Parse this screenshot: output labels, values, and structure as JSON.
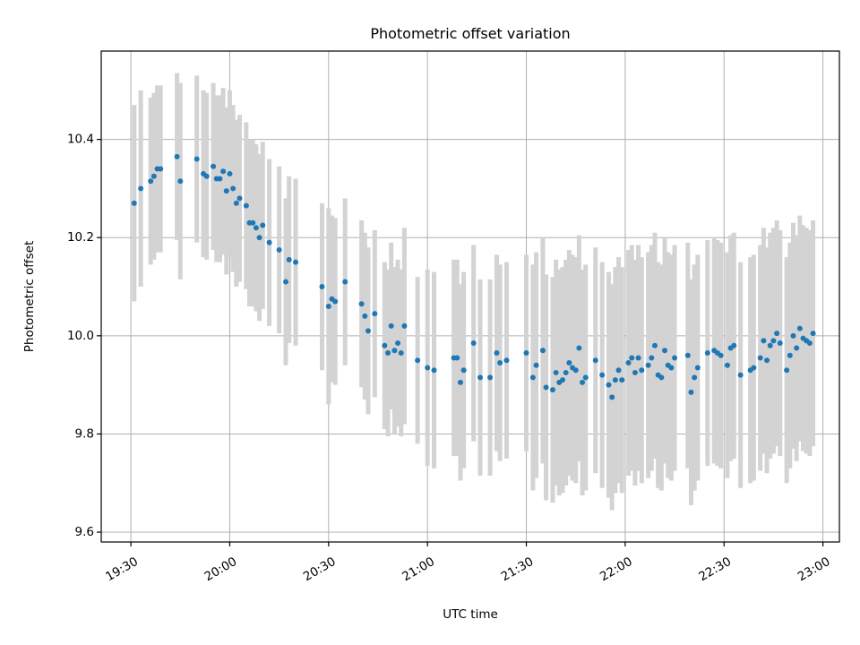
{
  "chart_data": {
    "type": "scatter",
    "title": "Photometric offset variation",
    "xlabel": "UTC time",
    "ylabel": "Photometric offset",
    "x_unit": "UTC time (HH:MM)",
    "xlim": [
      "19:21",
      "23:05"
    ],
    "ylim": [
      9.58,
      10.58
    ],
    "x_ticks": [
      "19:30",
      "20:00",
      "20:30",
      "21:00",
      "21:30",
      "22:00",
      "22:30",
      "23:00"
    ],
    "y_ticks": [
      "9.6",
      "9.8",
      "10.0",
      "10.2",
      "10.4"
    ],
    "grid": true,
    "x_tick_rotation": 30,
    "colors": {
      "point": "#1f77b4",
      "error_bar": "#d3d3d3"
    },
    "points": [
      {
        "t": "19:31",
        "y": 10.27,
        "err": 0.2
      },
      {
        "t": "19:33",
        "y": 10.3,
        "err": 0.2
      },
      {
        "t": "19:36",
        "y": 10.315,
        "err": 0.17
      },
      {
        "t": "19:37",
        "y": 10.325,
        "err": 0.17
      },
      {
        "t": "19:38",
        "y": 10.34,
        "err": 0.17
      },
      {
        "t": "19:39",
        "y": 10.34,
        "err": 0.17
      },
      {
        "t": "19:44",
        "y": 10.365,
        "err": 0.17
      },
      {
        "t": "19:45",
        "y": 10.315,
        "err": 0.2
      },
      {
        "t": "19:50",
        "y": 10.36,
        "err": 0.17
      },
      {
        "t": "19:52",
        "y": 10.33,
        "err": 0.17
      },
      {
        "t": "19:53",
        "y": 10.325,
        "err": 0.17
      },
      {
        "t": "19:55",
        "y": 10.345,
        "err": 0.17
      },
      {
        "t": "19:56",
        "y": 10.32,
        "err": 0.17
      },
      {
        "t": "19:57",
        "y": 10.32,
        "err": 0.17
      },
      {
        "t": "19:58",
        "y": 10.335,
        "err": 0.17
      },
      {
        "t": "19:59",
        "y": 10.295,
        "err": 0.17
      },
      {
        "t": "20:00",
        "y": 10.33,
        "err": 0.17
      },
      {
        "t": "20:01",
        "y": 10.3,
        "err": 0.17
      },
      {
        "t": "20:02",
        "y": 10.27,
        "err": 0.17
      },
      {
        "t": "20:03",
        "y": 10.28,
        "err": 0.17
      },
      {
        "t": "20:05",
        "y": 10.265,
        "err": 0.17
      },
      {
        "t": "20:06",
        "y": 10.23,
        "err": 0.17
      },
      {
        "t": "20:07",
        "y": 10.23,
        "err": 0.17
      },
      {
        "t": "20:08",
        "y": 10.22,
        "err": 0.17
      },
      {
        "t": "20:09",
        "y": 10.2,
        "err": 0.17
      },
      {
        "t": "20:10",
        "y": 10.225,
        "err": 0.17
      },
      {
        "t": "20:12",
        "y": 10.19,
        "err": 0.17
      },
      {
        "t": "20:15",
        "y": 10.175,
        "err": 0.17
      },
      {
        "t": "20:17",
        "y": 10.11,
        "err": 0.17
      },
      {
        "t": "20:18",
        "y": 10.155,
        "err": 0.17
      },
      {
        "t": "20:20",
        "y": 10.15,
        "err": 0.17
      },
      {
        "t": "20:28",
        "y": 10.1,
        "err": 0.17
      },
      {
        "t": "20:30",
        "y": 10.06,
        "err": 0.2
      },
      {
        "t": "20:31",
        "y": 10.075,
        "err": 0.17
      },
      {
        "t": "20:32",
        "y": 10.07,
        "err": 0.17
      },
      {
        "t": "20:35",
        "y": 10.11,
        "err": 0.17
      },
      {
        "t": "20:40",
        "y": 10.065,
        "err": 0.17
      },
      {
        "t": "20:41",
        "y": 10.04,
        "err": 0.17
      },
      {
        "t": "20:42",
        "y": 10.01,
        "err": 0.17
      },
      {
        "t": "20:44",
        "y": 10.045,
        "err": 0.17
      },
      {
        "t": "20:47",
        "y": 9.98,
        "err": 0.17
      },
      {
        "t": "20:48",
        "y": 9.965,
        "err": 0.17
      },
      {
        "t": "20:49",
        "y": 10.02,
        "err": 0.17
      },
      {
        "t": "20:50",
        "y": 9.97,
        "err": 0.17
      },
      {
        "t": "20:51",
        "y": 9.985,
        "err": 0.17
      },
      {
        "t": "20:52",
        "y": 9.965,
        "err": 0.17
      },
      {
        "t": "20:53",
        "y": 10.02,
        "err": 0.2
      },
      {
        "t": "20:57",
        "y": 9.95,
        "err": 0.17
      },
      {
        "t": "21:00",
        "y": 9.935,
        "err": 0.2
      },
      {
        "t": "21:02",
        "y": 9.93,
        "err": 0.2
      },
      {
        "t": "21:08",
        "y": 9.955,
        "err": 0.2
      },
      {
        "t": "21:09",
        "y": 9.955,
        "err": 0.2
      },
      {
        "t": "21:10",
        "y": 9.905,
        "err": 0.2
      },
      {
        "t": "21:11",
        "y": 9.93,
        "err": 0.2
      },
      {
        "t": "21:14",
        "y": 9.985,
        "err": 0.2
      },
      {
        "t": "21:16",
        "y": 9.915,
        "err": 0.2
      },
      {
        "t": "21:19",
        "y": 9.915,
        "err": 0.2
      },
      {
        "t": "21:21",
        "y": 9.965,
        "err": 0.2
      },
      {
        "t": "21:22",
        "y": 9.945,
        "err": 0.2
      },
      {
        "t": "21:24",
        "y": 9.95,
        "err": 0.2
      },
      {
        "t": "21:30",
        "y": 9.965,
        "err": 0.2
      },
      {
        "t": "21:32",
        "y": 9.915,
        "err": 0.23
      },
      {
        "t": "21:33",
        "y": 9.94,
        "err": 0.23
      },
      {
        "t": "21:35",
        "y": 9.97,
        "err": 0.23
      },
      {
        "t": "21:36",
        "y": 9.895,
        "err": 0.23
      },
      {
        "t": "21:38",
        "y": 9.89,
        "err": 0.23
      },
      {
        "t": "21:39",
        "y": 9.925,
        "err": 0.23
      },
      {
        "t": "21:40",
        "y": 9.905,
        "err": 0.23
      },
      {
        "t": "21:41",
        "y": 9.91,
        "err": 0.23
      },
      {
        "t": "21:42",
        "y": 9.925,
        "err": 0.23
      },
      {
        "t": "21:43",
        "y": 9.945,
        "err": 0.23
      },
      {
        "t": "21:44",
        "y": 9.935,
        "err": 0.23
      },
      {
        "t": "21:45",
        "y": 9.93,
        "err": 0.23
      },
      {
        "t": "21:46",
        "y": 9.975,
        "err": 0.23
      },
      {
        "t": "21:47",
        "y": 9.905,
        "err": 0.23
      },
      {
        "t": "21:48",
        "y": 9.915,
        "err": 0.23
      },
      {
        "t": "21:51",
        "y": 9.95,
        "err": 0.23
      },
      {
        "t": "21:53",
        "y": 9.92,
        "err": 0.23
      },
      {
        "t": "21:55",
        "y": 9.9,
        "err": 0.23
      },
      {
        "t": "21:56",
        "y": 9.875,
        "err": 0.23
      },
      {
        "t": "21:57",
        "y": 9.91,
        "err": 0.23
      },
      {
        "t": "21:58",
        "y": 9.93,
        "err": 0.23
      },
      {
        "t": "21:59",
        "y": 9.91,
        "err": 0.23
      },
      {
        "t": "22:01",
        "y": 9.945,
        "err": 0.23
      },
      {
        "t": "22:02",
        "y": 9.955,
        "err": 0.23
      },
      {
        "t": "22:03",
        "y": 9.925,
        "err": 0.23
      },
      {
        "t": "22:04",
        "y": 9.955,
        "err": 0.23
      },
      {
        "t": "22:05",
        "y": 9.93,
        "err": 0.23
      },
      {
        "t": "22:07",
        "y": 9.94,
        "err": 0.23
      },
      {
        "t": "22:08",
        "y": 9.955,
        "err": 0.23
      },
      {
        "t": "22:09",
        "y": 9.98,
        "err": 0.23
      },
      {
        "t": "22:10",
        "y": 9.92,
        "err": 0.23
      },
      {
        "t": "22:11",
        "y": 9.915,
        "err": 0.23
      },
      {
        "t": "22:12",
        "y": 9.97,
        "err": 0.23
      },
      {
        "t": "22:13",
        "y": 9.94,
        "err": 0.23
      },
      {
        "t": "22:14",
        "y": 9.935,
        "err": 0.23
      },
      {
        "t": "22:15",
        "y": 9.955,
        "err": 0.23
      },
      {
        "t": "22:19",
        "y": 9.96,
        "err": 0.23
      },
      {
        "t": "22:20",
        "y": 9.885,
        "err": 0.23
      },
      {
        "t": "22:21",
        "y": 9.915,
        "err": 0.23
      },
      {
        "t": "22:22",
        "y": 9.935,
        "err": 0.23
      },
      {
        "t": "22:25",
        "y": 9.965,
        "err": 0.23
      },
      {
        "t": "22:27",
        "y": 9.97,
        "err": 0.23
      },
      {
        "t": "22:28",
        "y": 9.965,
        "err": 0.23
      },
      {
        "t": "22:29",
        "y": 9.96,
        "err": 0.23
      },
      {
        "t": "22:31",
        "y": 9.94,
        "err": 0.23
      },
      {
        "t": "22:32",
        "y": 9.975,
        "err": 0.23
      },
      {
        "t": "22:33",
        "y": 9.98,
        "err": 0.23
      },
      {
        "t": "22:35",
        "y": 9.92,
        "err": 0.23
      },
      {
        "t": "22:38",
        "y": 9.93,
        "err": 0.23
      },
      {
        "t": "22:39",
        "y": 9.935,
        "err": 0.23
      },
      {
        "t": "22:41",
        "y": 9.955,
        "err": 0.23
      },
      {
        "t": "22:42",
        "y": 9.99,
        "err": 0.23
      },
      {
        "t": "22:43",
        "y": 9.95,
        "err": 0.23
      },
      {
        "t": "22:44",
        "y": 9.98,
        "err": 0.23
      },
      {
        "t": "22:45",
        "y": 9.99,
        "err": 0.23
      },
      {
        "t": "22:46",
        "y": 10.005,
        "err": 0.23
      },
      {
        "t": "22:47",
        "y": 9.985,
        "err": 0.23
      },
      {
        "t": "22:49",
        "y": 9.93,
        "err": 0.23
      },
      {
        "t": "22:50",
        "y": 9.96,
        "err": 0.23
      },
      {
        "t": "22:51",
        "y": 10.0,
        "err": 0.23
      },
      {
        "t": "22:52",
        "y": 9.975,
        "err": 0.23
      },
      {
        "t": "22:53",
        "y": 10.015,
        "err": 0.23
      },
      {
        "t": "22:54",
        "y": 9.995,
        "err": 0.23
      },
      {
        "t": "22:55",
        "y": 9.99,
        "err": 0.23
      },
      {
        "t": "22:56",
        "y": 9.985,
        "err": 0.23
      },
      {
        "t": "22:57",
        "y": 10.005,
        "err": 0.23
      }
    ]
  }
}
